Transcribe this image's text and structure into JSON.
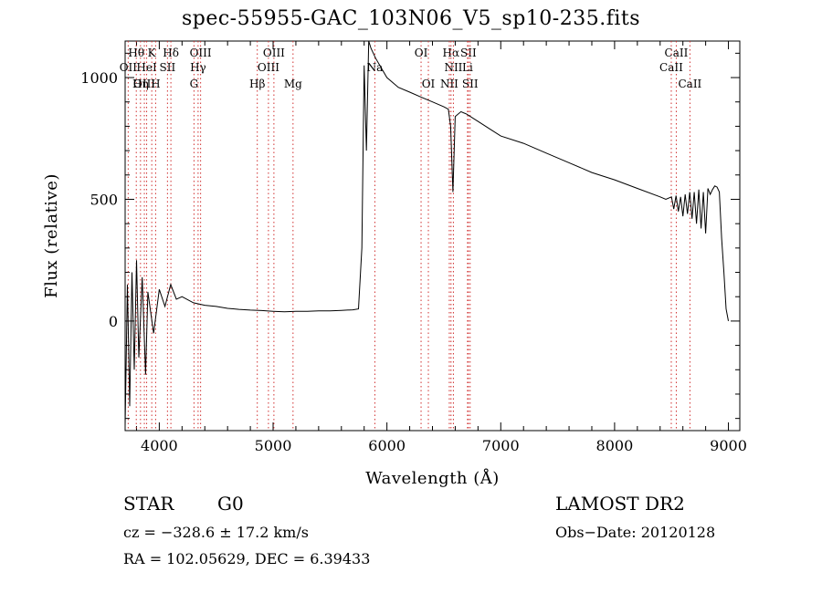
{
  "chart_data": {
    "type": "line",
    "title": "spec-55955-GAC_103N06_V5_sp10-235.fits",
    "xlabel": "Wavelength (Å)",
    "ylabel": "Flux (relative)",
    "xlim": [
      3700,
      9100
    ],
    "ylim": [
      -450,
      1150
    ],
    "x_ticks": [
      4000,
      5000,
      6000,
      7000,
      8000,
      9000
    ],
    "y_ticks": [
      0,
      500,
      1000
    ],
    "grid": false,
    "series": [
      {
        "x": [
          3700,
          3720,
          3740,
          3760,
          3780,
          3800,
          3820,
          3850,
          3880,
          3900,
          3950,
          4000,
          4050,
          4100,
          4150,
          4200,
          4300,
          4400,
          4500,
          4600,
          4700,
          4800,
          4900,
          5000,
          5100,
          5200,
          5300,
          5400,
          5500,
          5600,
          5700,
          5750,
          5780,
          5800,
          5820,
          5840,
          5860,
          5880,
          5900,
          5950,
          6000,
          6100,
          6200,
          6300,
          6400,
          6500,
          6540,
          6560,
          6580,
          6600,
          6650,
          6700,
          6800,
          6900,
          7000,
          7200,
          7400,
          7600,
          7800,
          8000,
          8200,
          8400,
          8450,
          8500,
          8520,
          8540,
          8560,
          8580,
          8600,
          8620,
          8640,
          8660,
          8680,
          8700,
          8720,
          8740,
          8760,
          8780,
          8800,
          8820,
          8840,
          8860,
          8880,
          8900,
          8920,
          8940,
          8960,
          8980,
          9000
        ],
        "y": [
          -430,
          150,
          -350,
          200,
          -200,
          250,
          -150,
          180,
          -220,
          120,
          -50,
          130,
          60,
          150,
          90,
          100,
          75,
          65,
          60,
          52,
          48,
          45,
          43,
          40,
          38,
          40,
          40,
          42,
          42,
          44,
          46,
          50,
          300,
          1050,
          700,
          1150,
          1120,
          1100,
          1080,
          1040,
          1000,
          960,
          940,
          920,
          900,
          880,
          870,
          800,
          530,
          840,
          860,
          850,
          820,
          790,
          760,
          730,
          690,
          650,
          610,
          580,
          545,
          510,
          500,
          510,
          460,
          515,
          450,
          510,
          430,
          520,
          440,
          530,
          420,
          530,
          400,
          540,
          380,
          530,
          360,
          545,
          520,
          540,
          555,
          550,
          530,
          340,
          200,
          50,
          0
        ]
      }
    ],
    "line_markers": [
      {
        "label": "Hθ",
        "wavelength": 3798,
        "row": 0
      },
      {
        "label": "OII",
        "wavelength": 3727,
        "row": 1
      },
      {
        "label": "OIII",
        "wavelength": 3869,
        "row": 2
      },
      {
        "label": "K",
        "wavelength": 3934,
        "row": 0
      },
      {
        "label": "HeI",
        "wavelength": 3889,
        "row": 1
      },
      {
        "label": "Hη",
        "wavelength": 3835,
        "row": 2
      },
      {
        "label": "H",
        "wavelength": 3968,
        "row": 2
      },
      {
        "label": "SII",
        "wavelength": 4072,
        "row": 1
      },
      {
        "label": "Hδ",
        "wavelength": 4102,
        "row": 0
      },
      {
        "label": "OIII",
        "wavelength": 4363,
        "row": 0
      },
      {
        "label": "Hγ",
        "wavelength": 4341,
        "row": 1
      },
      {
        "label": "G",
        "wavelength": 4305,
        "row": 2
      },
      {
        "label": "OIII",
        "wavelength": 5007,
        "row": 0
      },
      {
        "label": "OIII",
        "wavelength": 4959,
        "row": 1
      },
      {
        "label": "Hβ",
        "wavelength": 4861,
        "row": 2
      },
      {
        "label": "Mg",
        "wavelength": 5175,
        "row": 2
      },
      {
        "label": "Na",
        "wavelength": 5894,
        "row": 1
      },
      {
        "label": "OI",
        "wavelength": 6300,
        "row": 0
      },
      {
        "label": "OI",
        "wavelength": 6364,
        "row": 2
      },
      {
        "label": "Hα",
        "wavelength": 6563,
        "row": 0
      },
      {
        "label": "NII",
        "wavelength": 6584,
        "row": 1
      },
      {
        "label": "NII",
        "wavelength": 6548,
        "row": 2
      },
      {
        "label": "SII",
        "wavelength": 6716,
        "row": 0
      },
      {
        "label": "SII",
        "wavelength": 6731,
        "row": 2
      },
      {
        "label": "Li",
        "wavelength": 6708,
        "row": 1
      },
      {
        "label": "CaII",
        "wavelength": 8542,
        "row": 0
      },
      {
        "label": "CaII",
        "wavelength": 8498,
        "row": 1
      },
      {
        "label": "CaII",
        "wavelength": 8662,
        "row": 2
      }
    ]
  },
  "info": {
    "object_type": "STAR",
    "spectral_class": "G0",
    "survey": "LAMOST DR2",
    "cz": "cz = −328.6 ± 17.2 km/s",
    "obs_date": "Obs−Date: 20120128",
    "radec": "RA = 102.05629, DEC =    6.39433"
  }
}
